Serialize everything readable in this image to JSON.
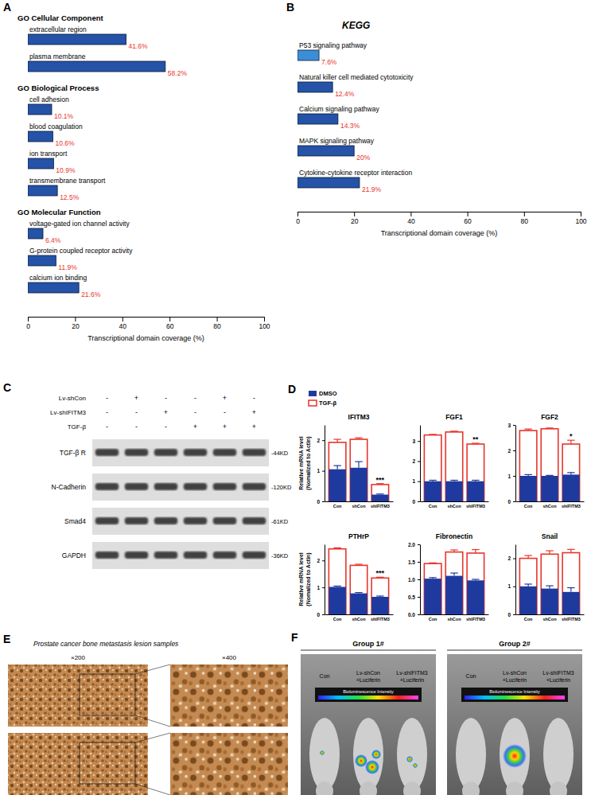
{
  "chart_data": [
    {
      "panel": "A",
      "type": "bar",
      "orientation": "horizontal",
      "color": "#2453a8",
      "data_labels": true,
      "xlabel": "Transcriptional domain coverage (%)",
      "xlim": [
        0,
        100
      ],
      "xticks": [
        0,
        20,
        40,
        60,
        80,
        100
      ],
      "groups": [
        {
          "title": "GO Cellular Component",
          "categories": [
            "extracellular region",
            "plasma membrane"
          ],
          "values": [
            41.6,
            58.2
          ],
          "value_labels": [
            "41.6%",
            "58.2%"
          ]
        },
        {
          "title": "GO Biological Process",
          "categories": [
            "cell adhesion",
            "blood coagulation",
            "ion transport",
            "transmembrane transport"
          ],
          "values": [
            10.1,
            10.6,
            10.9,
            12.5
          ],
          "value_labels": [
            "10.1%",
            "10.6%",
            "10.9%",
            "12.5%"
          ]
        },
        {
          "title": "GO Molecular Function",
          "categories": [
            "voltage-gated ion channel activity",
            "G-protein coupled receptor activity",
            "calcium ion binding"
          ],
          "values": [
            6.4,
            11.9,
            21.6
          ],
          "value_labels": [
            "6.4%",
            "11.9%",
            "21.6%"
          ]
        }
      ]
    },
    {
      "panel": "B",
      "type": "bar",
      "orientation": "horizontal",
      "title": "KEGG",
      "colors": [
        "#3b8ed6",
        "#2453a8",
        "#2453a8",
        "#2453a8",
        "#2453a8"
      ],
      "data_labels": true,
      "xlabel": "Transcriptional domain coverage (%)",
      "xlim": [
        0,
        100
      ],
      "xticks": [
        0,
        20,
        40,
        60,
        80,
        100
      ],
      "categories": [
        "P53 signaling pathway",
        "Natural killer cell mediated cytotoxicity",
        "Calcium signaling pathway",
        "MAPK signaling pathway",
        "Cytokine-cytokine receptor interaction"
      ],
      "values": [
        7.6,
        12.4,
        14.3,
        20,
        21.9
      ],
      "value_labels": [
        "7.6%",
        "12.4%",
        "14.3%",
        "20%",
        "21.9%"
      ]
    },
    {
      "panel": "D",
      "type": "bar",
      "title": "IFITM3",
      "legend": "top-left",
      "ylabel": [
        "Relative mRNA level",
        "(Nomalized to Actin)"
      ],
      "categories": [
        "Con",
        "shCon",
        "shIFITM3"
      ],
      "ylim": [
        0,
        2.5
      ],
      "yticks": [
        0,
        1,
        2
      ],
      "series": [
        {
          "name": "DMSO",
          "color": "#1f3a9e",
          "values": [
            1.05,
            1.1,
            0.22
          ],
          "errors": [
            0.12,
            0.2,
            0.02
          ]
        },
        {
          "name": "TGF-β",
          "color": "#e8352b",
          "values": [
            1.93,
            2.03,
            0.55
          ],
          "errors": [
            0.1,
            0.05,
            0.03
          ]
        }
      ],
      "annotations": [
        null,
        null,
        "***"
      ]
    },
    {
      "type": "bar",
      "title": "FGF1",
      "categories": [
        "Con",
        "shCon",
        "shIFITM3"
      ],
      "ylim": [
        0,
        3.8
      ],
      "yticks": [
        0,
        1,
        2,
        3
      ],
      "series": [
        {
          "color": "#1f3a9e",
          "values": [
            1.0,
            1.0,
            1.0
          ],
          "errors": [
            0.05,
            0.05,
            0.05
          ]
        },
        {
          "color": "#e8352b",
          "values": [
            3.3,
            3.45,
            2.85
          ],
          "errors": [
            0.03,
            0.04,
            0.04
          ]
        }
      ],
      "annotations": [
        null,
        null,
        "**"
      ]
    },
    {
      "type": "bar",
      "title": "FGF2",
      "categories": [
        "Con",
        "shCon",
        "shIFITM3"
      ],
      "ylim": [
        0,
        3
      ],
      "yticks": [
        0,
        1,
        2,
        3
      ],
      "series": [
        {
          "color": "#1f3a9e",
          "values": [
            1.0,
            1.0,
            1.05
          ],
          "errors": [
            0.05,
            0.02,
            0.08
          ]
        },
        {
          "color": "#e8352b",
          "values": [
            2.78,
            2.85,
            2.25
          ],
          "errors": [
            0.06,
            0.03,
            0.15
          ]
        }
      ],
      "annotations": [
        null,
        null,
        "*"
      ]
    },
    {
      "type": "bar",
      "title": "PTHrP",
      "ylabel": [
        "Relative mRNA level",
        "(Nomalized to Actin)"
      ],
      "categories": [
        "Con",
        "shCon",
        "shIFITM3"
      ],
      "ylim": [
        0,
        2.6
      ],
      "yticks": [
        0,
        1,
        2
      ],
      "series": [
        {
          "color": "#1f3a9e",
          "values": [
            1.02,
            0.78,
            0.65
          ],
          "errors": [
            0.03,
            0.03,
            0.03
          ]
        },
        {
          "color": "#e8352b",
          "values": [
            2.43,
            1.82,
            1.35
          ],
          "errors": [
            0.04,
            0.04,
            0.03
          ]
        }
      ],
      "annotations": [
        null,
        null,
        "***"
      ]
    },
    {
      "type": "bar",
      "title": "Fibronectin",
      "categories": [
        "Con",
        "shCon",
        "shIFITM3"
      ],
      "ylim": [
        0,
        2
      ],
      "yticks": [
        {
          "value": 0,
          "label": "0.0"
        },
        {
          "value": 0.5,
          "label": "0.5"
        },
        {
          "value": 1,
          "label": "1.0"
        },
        {
          "value": 1.5,
          "label": "1.5"
        },
        {
          "value": 2,
          "label": "2.0"
        }
      ],
      "series": [
        {
          "color": "#1f3a9e",
          "values": [
            1.02,
            1.1,
            0.97
          ],
          "errors": [
            0.03,
            0.08,
            0.03
          ]
        },
        {
          "color": "#e8352b",
          "values": [
            1.45,
            1.78,
            1.75
          ],
          "errors": [
            0.02,
            0.06,
            0.1
          ]
        }
      ]
    },
    {
      "type": "bar",
      "title": "Snail",
      "categories": [
        "Con",
        "shCon",
        "shIFITM3"
      ],
      "ylim": [
        0,
        2.5
      ],
      "yticks": [
        0,
        1,
        2
      ],
      "series": [
        {
          "color": "#1f3a9e",
          "values": [
            1.0,
            0.92,
            0.8
          ],
          "errors": [
            0.08,
            0.1,
            0.15
          ]
        },
        {
          "color": "#e8352b",
          "values": [
            2.0,
            2.15,
            2.2
          ],
          "errors": [
            0.1,
            0.12,
            0.12
          ]
        }
      ]
    }
  ],
  "blot": {
    "panel": "C",
    "conditions": [
      {
        "label": "Lv-shCon",
        "signs": [
          "-",
          "+",
          "-",
          "-",
          "+",
          "-"
        ]
      },
      {
        "label": "Lv-shIFITM3",
        "signs": [
          "-",
          "-",
          "+",
          "-",
          "-",
          "+"
        ]
      },
      {
        "label": "TGF-β",
        "signs": [
          "-",
          "-",
          "-",
          "+",
          "+",
          "+"
        ]
      }
    ],
    "rows": [
      {
        "label": "TGF-β R",
        "size": "-44KD"
      },
      {
        "label": "N-Cadherin",
        "size": "-120KD"
      },
      {
        "label": "Smad4",
        "size": "-61KD"
      },
      {
        "label": "GAPDH",
        "size": "-36KD"
      }
    ]
  },
  "ihc": {
    "panel": "E",
    "title": "Prostate cancer bone metastasis lesion samples",
    "magnifications": [
      "×200",
      "×400"
    ]
  },
  "imaging": {
    "panel": "F",
    "groups": [
      {
        "title": "Group 1#",
        "colorbar_title": "Bioluminescence Intensity",
        "mice": [
          [
            "Con"
          ],
          [
            "Lv-shCon",
            "+Luciferin"
          ],
          [
            "Lv-shIFITM3",
            "+Luciferin"
          ]
        ]
      },
      {
        "title": "Group 2#",
        "colorbar_title": "Bioluminescence Intensity",
        "mice": [
          [
            "Con"
          ],
          [
            "Lv-shCon",
            "+Luciferin"
          ],
          [
            "Lv-shIFITM3",
            "+Luciferin"
          ]
        ]
      }
    ]
  }
}
